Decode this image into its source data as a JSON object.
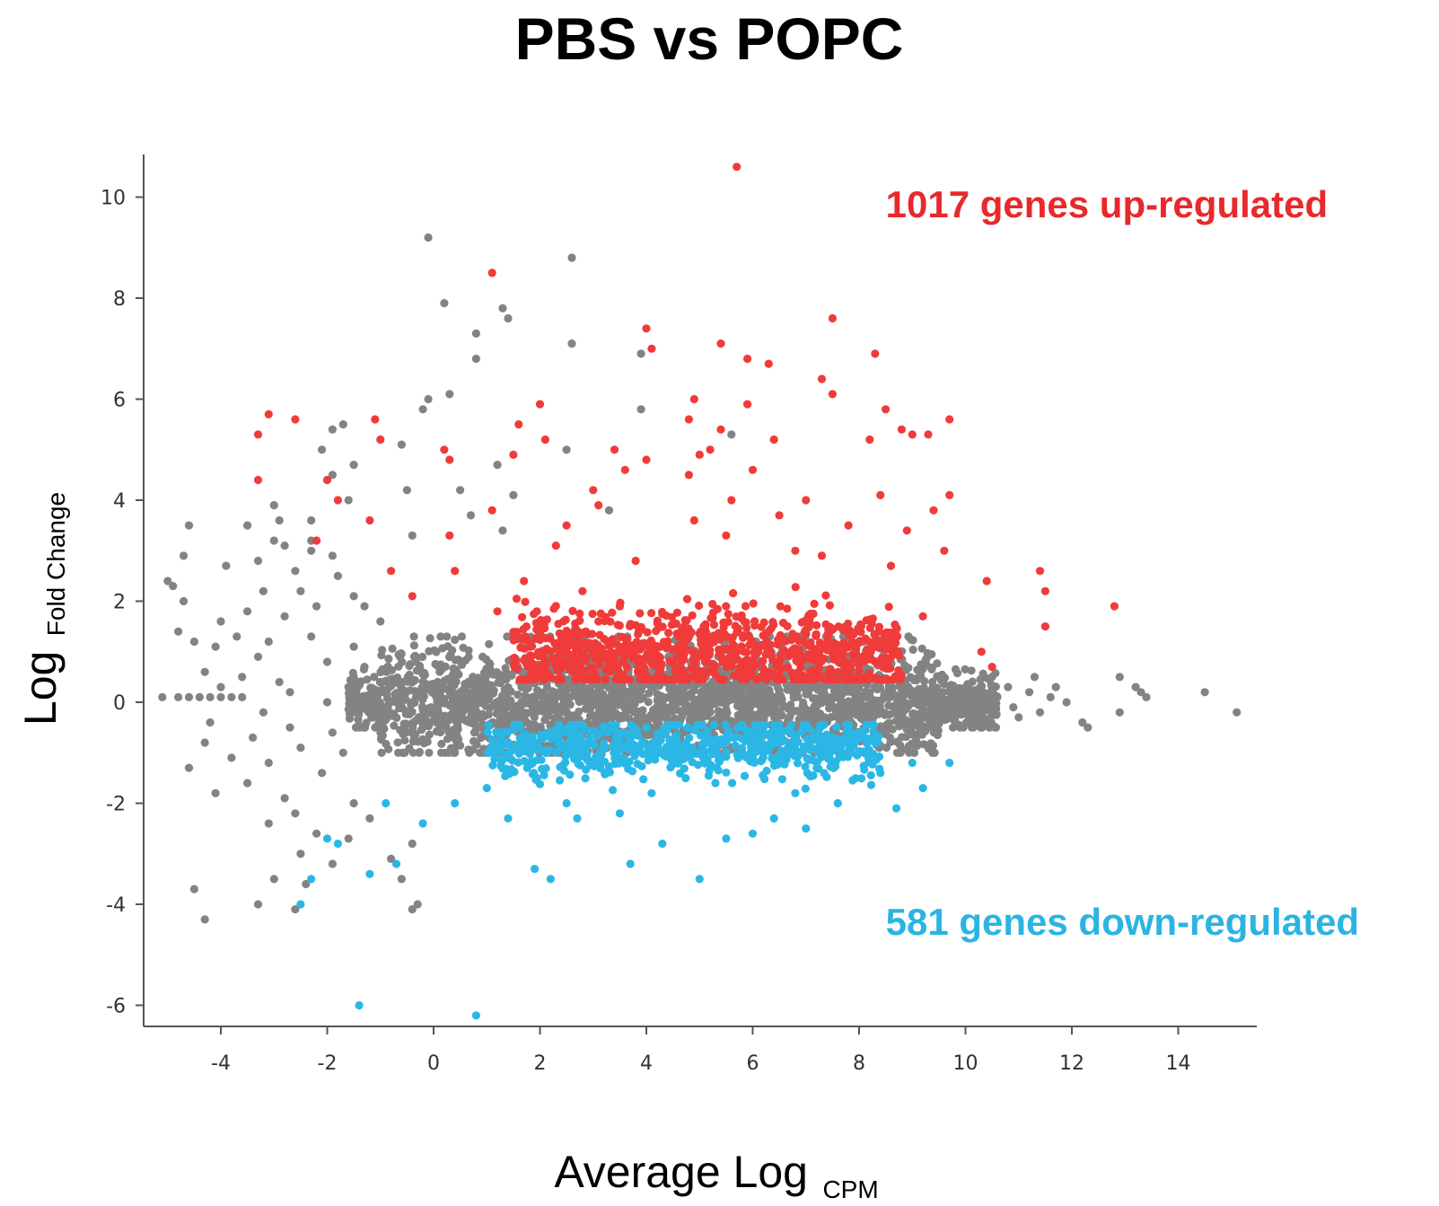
{
  "chart_data": {
    "type": "scatter",
    "title": "PBS vs POPC",
    "xlabel": {
      "main": "Average Log",
      "sub": "CPM"
    },
    "ylabel": {
      "main": "Log",
      "sub": "Fold Change"
    },
    "xlim": [
      -5.5,
      15.5
    ],
    "ylim": [
      -6.5,
      11
    ],
    "xticks": [
      -4,
      -2,
      0,
      2,
      4,
      6,
      8,
      10,
      12,
      14
    ],
    "yticks": [
      -6,
      -4,
      -2,
      0,
      2,
      4,
      6,
      8,
      10
    ],
    "grid": false,
    "annotations": [
      {
        "text": "1017 genes up-regulated",
        "color": "#e8292b",
        "x": 8.5,
        "y": 9.6
      },
      {
        "text": "581 genes down-regulated",
        "color": "#2bb4e2",
        "x": 8.5,
        "y": -4.6
      }
    ],
    "series": [
      {
        "name": "up-regulated",
        "color": "#f03b3b",
        "points": [
          [
            5.7,
            10.6
          ],
          [
            1.1,
            8.5
          ],
          [
            7.5,
            7.6
          ],
          [
            4.0,
            7.4
          ],
          [
            5.4,
            7.1
          ],
          [
            4.1,
            7.0
          ],
          [
            8.3,
            6.9
          ],
          [
            5.9,
            6.8
          ],
          [
            6.3,
            6.7
          ],
          [
            7.3,
            6.4
          ],
          [
            7.5,
            6.1
          ],
          [
            4.9,
            6.0
          ],
          [
            2.0,
            5.9
          ],
          [
            5.9,
            5.9
          ],
          [
            8.5,
            5.8
          ],
          [
            -3.1,
            5.7
          ],
          [
            9.7,
            5.6
          ],
          [
            -2.6,
            5.6
          ],
          [
            -1.1,
            5.6
          ],
          [
            4.8,
            5.6
          ],
          [
            1.6,
            5.5
          ],
          [
            5.4,
            5.4
          ],
          [
            8.8,
            5.4
          ],
          [
            9.0,
            5.3
          ],
          [
            -3.3,
            5.3
          ],
          [
            -1.0,
            5.2
          ],
          [
            9.3,
            5.3
          ],
          [
            2.1,
            5.2
          ],
          [
            5.2,
            5.0
          ],
          [
            8.2,
            5.2
          ],
          [
            6.4,
            5.2
          ],
          [
            3.4,
            5.0
          ],
          [
            0.2,
            5.0
          ],
          [
            5.0,
            4.9
          ],
          [
            1.5,
            4.9
          ],
          [
            4.0,
            4.8
          ],
          [
            0.3,
            4.8
          ],
          [
            6.0,
            4.6
          ],
          [
            3.6,
            4.6
          ],
          [
            -3.3,
            4.4
          ],
          [
            4.8,
            4.5
          ],
          [
            -2.0,
            4.4
          ],
          [
            3.0,
            4.2
          ],
          [
            9.7,
            4.1
          ],
          [
            8.4,
            4.1
          ],
          [
            5.6,
            4.0
          ],
          [
            -1.8,
            4.0
          ],
          [
            7.0,
            4.0
          ],
          [
            3.1,
            3.9
          ],
          [
            9.4,
            3.8
          ],
          [
            1.1,
            3.8
          ],
          [
            6.5,
            3.7
          ],
          [
            4.9,
            3.6
          ],
          [
            -1.2,
            3.6
          ],
          [
            2.5,
            3.5
          ],
          [
            7.8,
            3.5
          ],
          [
            8.9,
            3.4
          ],
          [
            -2.2,
            3.2
          ],
          [
            5.5,
            3.3
          ],
          [
            0.3,
            3.3
          ],
          [
            2.3,
            3.1
          ],
          [
            6.8,
            3.0
          ],
          [
            9.6,
            3.0
          ],
          [
            7.3,
            2.9
          ],
          [
            3.8,
            2.8
          ],
          [
            8.6,
            2.7
          ],
          [
            11.4,
            2.6
          ],
          [
            10.4,
            2.4
          ],
          [
            11.5,
            2.2
          ],
          [
            12.8,
            1.9
          ],
          [
            9.2,
            1.7
          ],
          [
            11.5,
            1.5
          ],
          [
            10.3,
            1.0
          ],
          [
            10.5,
            0.7
          ],
          [
            -0.8,
            2.6
          ],
          [
            0.4,
            2.6
          ],
          [
            1.7,
            2.4
          ],
          [
            -0.4,
            2.1
          ],
          [
            2.8,
            2.2
          ],
          [
            1.2,
            1.8
          ],
          [
            2.0,
            1.4
          ],
          [
            3.1,
            1.6
          ],
          [
            3.5,
            1.9
          ]
        ]
      },
      {
        "name": "down-regulated",
        "color": "#2bb7e6",
        "points": [
          [
            0.8,
            -6.2
          ],
          [
            -1.4,
            -6.0
          ],
          [
            -2.5,
            -4.0
          ],
          [
            -2.3,
            -3.5
          ],
          [
            2.2,
            -3.5
          ],
          [
            5.0,
            -3.5
          ],
          [
            -1.2,
            -3.4
          ],
          [
            1.9,
            -3.3
          ],
          [
            3.7,
            -3.2
          ],
          [
            -0.7,
            -3.2
          ],
          [
            -1.8,
            -2.8
          ],
          [
            4.3,
            -2.8
          ],
          [
            -2.0,
            -2.7
          ],
          [
            5.5,
            -2.7
          ],
          [
            6.0,
            -2.6
          ],
          [
            7.0,
            -2.5
          ],
          [
            8.7,
            -2.1
          ],
          [
            7.6,
            -2.0
          ],
          [
            6.4,
            -2.3
          ],
          [
            3.5,
            -2.2
          ],
          [
            2.7,
            -2.3
          ],
          [
            1.4,
            -2.3
          ],
          [
            0.4,
            -2.0
          ],
          [
            -0.2,
            -2.4
          ],
          [
            9.2,
            -1.7
          ],
          [
            9.7,
            -1.2
          ],
          [
            9.0,
            -1.2
          ],
          [
            8.4,
            -1.4
          ],
          [
            4.1,
            -1.8
          ],
          [
            6.8,
            -1.8
          ],
          [
            2.5,
            -2.0
          ],
          [
            -0.9,
            -2.0
          ],
          [
            1.0,
            -1.7
          ],
          [
            5.3,
            -1.6
          ]
        ]
      },
      {
        "name": "not significant",
        "color": "#838383",
        "points": [
          [
            -0.1,
            9.2
          ],
          [
            2.6,
            8.8
          ],
          [
            0.2,
            7.9
          ],
          [
            1.3,
            7.8
          ],
          [
            1.4,
            7.6
          ],
          [
            0.8,
            7.3
          ],
          [
            2.6,
            7.1
          ],
          [
            3.9,
            6.9
          ],
          [
            0.8,
            6.8
          ],
          [
            0.3,
            6.1
          ],
          [
            -0.1,
            6.0
          ],
          [
            -0.2,
            5.8
          ],
          [
            3.9,
            5.8
          ],
          [
            -1.7,
            5.5
          ],
          [
            -1.9,
            5.4
          ],
          [
            -0.6,
            5.1
          ],
          [
            -2.1,
            5.0
          ],
          [
            5.6,
            5.3
          ],
          [
            2.5,
            5.0
          ],
          [
            -1.5,
            4.7
          ],
          [
            1.2,
            4.7
          ],
          [
            -1.9,
            4.5
          ],
          [
            -1.6,
            4.0
          ],
          [
            -0.5,
            4.2
          ],
          [
            0.5,
            4.2
          ],
          [
            1.5,
            4.1
          ],
          [
            -3.0,
            3.9
          ],
          [
            3.3,
            3.8
          ],
          [
            -4.6,
            3.5
          ],
          [
            -3.5,
            3.5
          ],
          [
            -2.9,
            3.6
          ],
          [
            -2.3,
            3.6
          ],
          [
            0.7,
            3.7
          ],
          [
            1.3,
            3.4
          ],
          [
            -0.4,
            3.3
          ],
          [
            -2.3,
            3.2
          ],
          [
            -3.0,
            3.2
          ],
          [
            -4.7,
            2.9
          ],
          [
            -2.8,
            3.1
          ],
          [
            -2.3,
            3.0
          ],
          [
            -1.9,
            2.9
          ],
          [
            -3.3,
            2.8
          ],
          [
            -3.9,
            2.7
          ],
          [
            -2.6,
            2.6
          ],
          [
            -1.8,
            2.5
          ],
          [
            -5.0,
            2.4
          ],
          [
            -4.9,
            2.3
          ],
          [
            -3.2,
            2.2
          ],
          [
            -2.5,
            2.2
          ],
          [
            -1.5,
            2.1
          ],
          [
            -4.7,
            2.0
          ],
          [
            -2.2,
            1.9
          ],
          [
            -1.3,
            1.9
          ],
          [
            -3.5,
            1.8
          ],
          [
            -2.8,
            1.7
          ],
          [
            -4.0,
            1.6
          ],
          [
            -1.0,
            1.6
          ],
          [
            -4.8,
            1.4
          ],
          [
            -3.7,
            1.3
          ],
          [
            -2.3,
            1.3
          ],
          [
            -4.5,
            1.2
          ],
          [
            -3.1,
            1.2
          ],
          [
            -1.5,
            1.1
          ],
          [
            -4.1,
            1.1
          ],
          [
            -3.3,
            0.9
          ],
          [
            -2.0,
            0.8
          ],
          [
            -1.3,
            0.7
          ],
          [
            -4.3,
            0.6
          ],
          [
            -3.6,
            0.5
          ],
          [
            -2.9,
            0.4
          ],
          [
            -4.0,
            0.3
          ],
          [
            -5.1,
            0.1
          ],
          [
            -4.8,
            0.1
          ],
          [
            -4.6,
            0.1
          ],
          [
            -4.4,
            0.1
          ],
          [
            -4.2,
            0.1
          ],
          [
            -4.0,
            0.1
          ],
          [
            -3.8,
            0.1
          ],
          [
            -3.6,
            0.1
          ],
          [
            -2.7,
            0.2
          ],
          [
            -2.0,
            0.0
          ],
          [
            -1.6,
            0.3
          ],
          [
            -3.2,
            -0.2
          ],
          [
            -4.2,
            -0.4
          ],
          [
            -2.7,
            -0.5
          ],
          [
            -1.9,
            -0.6
          ],
          [
            -3.4,
            -0.7
          ],
          [
            -4.3,
            -0.8
          ],
          [
            -2.5,
            -0.9
          ],
          [
            -3.8,
            -1.1
          ],
          [
            -1.7,
            -1.0
          ],
          [
            -3.1,
            -1.2
          ],
          [
            -4.6,
            -1.3
          ],
          [
            -2.1,
            -1.4
          ],
          [
            -3.5,
            -1.6
          ],
          [
            -4.1,
            -1.8
          ],
          [
            -2.8,
            -1.9
          ],
          [
            -1.5,
            -2.0
          ],
          [
            -2.6,
            -2.2
          ],
          [
            -1.2,
            -2.3
          ],
          [
            -3.1,
            -2.4
          ],
          [
            -2.2,
            -2.6
          ],
          [
            -1.6,
            -2.7
          ],
          [
            -0.4,
            -2.8
          ],
          [
            -2.5,
            -3.0
          ],
          [
            -0.8,
            -3.1
          ],
          [
            -1.9,
            -3.2
          ],
          [
            -3.0,
            -3.5
          ],
          [
            -0.6,
            -3.5
          ],
          [
            -2.4,
            -3.6
          ],
          [
            -4.5,
            -3.7
          ],
          [
            -0.3,
            -4.0
          ],
          [
            -0.4,
            -4.1
          ],
          [
            -3.3,
            -4.0
          ],
          [
            -2.6,
            -4.1
          ],
          [
            -4.3,
            -4.3
          ],
          [
            10.5,
            0.5
          ],
          [
            10.8,
            0.3
          ],
          [
            11.2,
            0.2
          ],
          [
            11.6,
            0.1
          ],
          [
            11.9,
            0.0
          ],
          [
            11.4,
            -0.2
          ],
          [
            11.0,
            -0.3
          ],
          [
            12.2,
            -0.4
          ],
          [
            12.3,
            -0.5
          ],
          [
            12.9,
            0.5
          ],
          [
            13.2,
            0.3
          ],
          [
            13.4,
            0.1
          ],
          [
            13.3,
            0.2
          ],
          [
            12.9,
            -0.2
          ],
          [
            14.5,
            0.2
          ],
          [
            15.1,
            -0.2
          ],
          [
            11.7,
            0.3
          ],
          [
            10.9,
            -0.1
          ],
          [
            11.3,
            0.5
          ]
        ]
      }
    ],
    "bulk_cloud": {
      "not_significant_band": {
        "x_range": [
          -1.6,
          10.6
        ],
        "y_center": 0.0,
        "y_spread": 0.55,
        "count": 2600
      },
      "up_cluster": {
        "x_range": [
          1.5,
          8.8
        ],
        "y_center": 0.95,
        "y_spread": 0.45,
        "count": 900
      },
      "down_cluster": {
        "x_range": [
          1.0,
          8.4
        ],
        "y_center": -0.9,
        "y_spread": 0.3,
        "count": 650
      }
    }
  }
}
